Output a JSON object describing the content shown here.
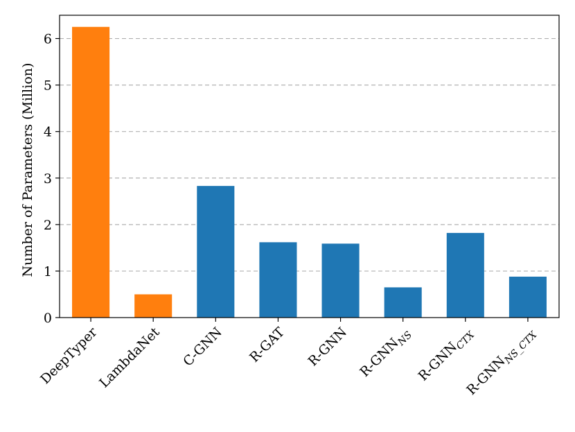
{
  "chart_data": {
    "type": "bar",
    "title": "",
    "xlabel": "",
    "ylabel": "Number of Parameters (Million)",
    "ylim": [
      0,
      6.5
    ],
    "yticks": [
      0,
      1,
      2,
      3,
      4,
      5,
      6
    ],
    "grid": "y-dashed",
    "categories": [
      {
        "base": "DeepTyper",
        "sub": ""
      },
      {
        "base": "LambdaNet",
        "sub": ""
      },
      {
        "base": "C-GNN",
        "sub": ""
      },
      {
        "base": "R-GAT",
        "sub": ""
      },
      {
        "base": "R-GNN",
        "sub": ""
      },
      {
        "base": "R-GNN",
        "sub": "NS"
      },
      {
        "base": "R-GNN",
        "sub": "CTX"
      },
      {
        "base": "R-GNN",
        "sub": "NS_CTX"
      }
    ],
    "values": [
      6.25,
      0.5,
      2.83,
      1.62,
      1.59,
      0.65,
      1.82,
      0.88
    ],
    "colors": [
      "#ff7f0e",
      "#ff7f0e",
      "#1f77b4",
      "#1f77b4",
      "#1f77b4",
      "#1f77b4",
      "#1f77b4",
      "#1f77b4"
    ]
  }
}
